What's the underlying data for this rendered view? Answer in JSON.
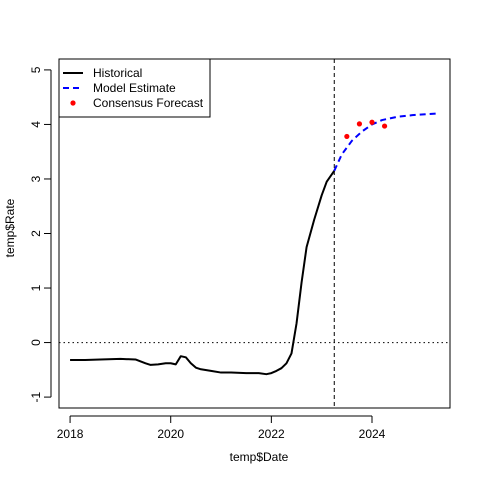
{
  "chart_data": {
    "type": "line",
    "title": "",
    "xlabel": "temp$Date",
    "ylabel": "temp$Rate",
    "xlim": [
      2017.78,
      2025.55
    ],
    "ylim": [
      -1.2,
      5.2
    ],
    "xticks": [
      2018,
      2020,
      2022,
      2024
    ],
    "yticks": [
      -1,
      0,
      1,
      2,
      3,
      4,
      5
    ],
    "xtick_labels": [
      "2018",
      "2020",
      "2022",
      "2024"
    ],
    "ytick_labels": [
      "-1",
      "0",
      "1",
      "2",
      "3",
      "4",
      "5"
    ],
    "grid": false,
    "legend_position": "top-left",
    "reference_lines": {
      "horizontal_dotted_y": 0,
      "vertical_dashed_x": 2023.25
    },
    "series": [
      {
        "name": "Historical",
        "style": "solid",
        "color": "#000000",
        "x": [
          2018.0,
          2018.3,
          2018.6,
          2019.0,
          2019.3,
          2019.5,
          2019.6,
          2019.75,
          2019.9,
          2020.0,
          2020.1,
          2020.2,
          2020.3,
          2020.4,
          2020.5,
          2020.6,
          2020.8,
          2021.0,
          2021.2,
          2021.5,
          2021.75,
          2021.9,
          2022.0,
          2022.1,
          2022.2,
          2022.3,
          2022.4,
          2022.5,
          2022.6,
          2022.7,
          2022.85,
          2023.0,
          2023.1,
          2023.25
        ],
        "y": [
          -0.32,
          -0.32,
          -0.31,
          -0.3,
          -0.31,
          -0.38,
          -0.41,
          -0.4,
          -0.38,
          -0.38,
          -0.4,
          -0.25,
          -0.27,
          -0.38,
          -0.46,
          -0.49,
          -0.52,
          -0.55,
          -0.55,
          -0.56,
          -0.56,
          -0.58,
          -0.56,
          -0.52,
          -0.47,
          -0.38,
          -0.2,
          0.35,
          1.1,
          1.75,
          2.25,
          2.7,
          2.95,
          3.15
        ]
      },
      {
        "name": "Model Estimate",
        "style": "dashed",
        "color": "#0000ff",
        "x": [
          2023.25,
          2023.4,
          2023.6,
          2023.8,
          2024.0,
          2024.2,
          2024.5,
          2024.8,
          2025.1,
          2025.3
        ],
        "y": [
          3.15,
          3.45,
          3.7,
          3.87,
          4.0,
          4.08,
          4.14,
          4.17,
          4.19,
          4.2
        ]
      },
      {
        "name": "Consensus Forecast",
        "style": "points",
        "color": "#ff0000",
        "x": [
          2023.5,
          2023.75,
          2024.0,
          2024.25
        ],
        "y": [
          3.78,
          4.01,
          4.04,
          3.97
        ]
      }
    ]
  }
}
